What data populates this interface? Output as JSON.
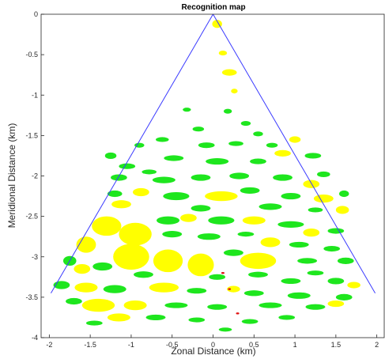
{
  "chart_data": {
    "type": "scatter",
    "title": "Recognition map",
    "xlabel": "Zonal Distance (km)",
    "ylabel": "Meridional Distance (km)",
    "xlim": [
      -2.1,
      2.1
    ],
    "ylim": [
      -4,
      0
    ],
    "xticks": [
      -2,
      -1.5,
      -1,
      -0.5,
      0,
      0.5,
      1,
      1.5,
      2
    ],
    "xtick_labels": [
      "-2",
      "-1.5",
      "-1",
      "-0.5",
      "0",
      "0.5",
      "1",
      "1.5",
      "2"
    ],
    "yticks": [
      0,
      -0.5,
      -1,
      -1.5,
      -2,
      -2.5,
      -3,
      -3.5,
      -4
    ],
    "ytick_labels": [
      "0",
      "-0.5",
      "-1",
      "-1.5",
      "-2",
      "-2.5",
      "-3",
      "-3.5",
      "-4"
    ],
    "grid": false,
    "boundary": {
      "color": "#3b3bff",
      "apex": [
        0,
        0
      ],
      "left_end": [
        -1.98,
        -3.45
      ],
      "right_end": [
        1.98,
        -3.45
      ]
    },
    "colors": {
      "green": "#1ee61e",
      "yellow": "#ffff00",
      "red": "#e01010"
    },
    "regions": [
      {
        "color": "yellow",
        "x": 0.05,
        "y": -0.12,
        "rx": 0.06,
        "ry": 0.05
      },
      {
        "color": "yellow",
        "x": 0.12,
        "y": -0.48,
        "rx": 0.05,
        "ry": 0.03
      },
      {
        "color": "yellow",
        "x": 0.2,
        "y": -0.72,
        "rx": 0.09,
        "ry": 0.04
      },
      {
        "color": "yellow",
        "x": 0.26,
        "y": -0.95,
        "rx": 0.04,
        "ry": 0.03
      },
      {
        "color": "green",
        "x": -0.32,
        "y": -1.18,
        "rx": 0.05,
        "ry": 0.025
      },
      {
        "color": "green",
        "x": 0.18,
        "y": -1.2,
        "rx": 0.05,
        "ry": 0.03
      },
      {
        "color": "green",
        "x": 0.4,
        "y": -1.35,
        "rx": 0.06,
        "ry": 0.03
      },
      {
        "color": "green",
        "x": -0.18,
        "y": -1.42,
        "rx": 0.07,
        "ry": 0.03
      },
      {
        "color": "green",
        "x": 0.55,
        "y": -1.48,
        "rx": 0.06,
        "ry": 0.03
      },
      {
        "color": "green",
        "x": -0.62,
        "y": -1.55,
        "rx": 0.08,
        "ry": 0.03
      },
      {
        "color": "green",
        "x": -0.08,
        "y": -1.62,
        "rx": 0.1,
        "ry": 0.035
      },
      {
        "color": "green",
        "x": 0.28,
        "y": -1.6,
        "rx": 0.09,
        "ry": 0.03
      },
      {
        "color": "green",
        "x": -0.9,
        "y": -1.62,
        "rx": 0.06,
        "ry": 0.03
      },
      {
        "color": "green",
        "x": 0.72,
        "y": -1.62,
        "rx": 0.07,
        "ry": 0.03
      },
      {
        "color": "yellow",
        "x": 1.0,
        "y": -1.55,
        "rx": 0.07,
        "ry": 0.04
      },
      {
        "color": "yellow",
        "x": 0.85,
        "y": -1.72,
        "rx": 0.1,
        "ry": 0.04
      },
      {
        "color": "green",
        "x": -1.25,
        "y": -1.75,
        "rx": 0.07,
        "ry": 0.04
      },
      {
        "color": "green",
        "x": -0.48,
        "y": -1.78,
        "rx": 0.12,
        "ry": 0.035
      },
      {
        "color": "green",
        "x": 0.05,
        "y": -1.82,
        "rx": 0.14,
        "ry": 0.04
      },
      {
        "color": "green",
        "x": 0.55,
        "y": -1.82,
        "rx": 0.1,
        "ry": 0.035
      },
      {
        "color": "green",
        "x": 1.22,
        "y": -1.75,
        "rx": 0.1,
        "ry": 0.035
      },
      {
        "color": "green",
        "x": -1.05,
        "y": -1.88,
        "rx": 0.1,
        "ry": 0.035
      },
      {
        "color": "green",
        "x": -0.78,
        "y": -1.95,
        "rx": 0.09,
        "ry": 0.03
      },
      {
        "color": "green",
        "x": -1.15,
        "y": -2.02,
        "rx": 0.1,
        "ry": 0.04
      },
      {
        "color": "green",
        "x": -0.6,
        "y": -2.05,
        "rx": 0.14,
        "ry": 0.04
      },
      {
        "color": "green",
        "x": -0.15,
        "y": -2.02,
        "rx": 0.12,
        "ry": 0.04
      },
      {
        "color": "green",
        "x": 0.32,
        "y": -2.0,
        "rx": 0.12,
        "ry": 0.04
      },
      {
        "color": "green",
        "x": 0.85,
        "y": -2.02,
        "rx": 0.12,
        "ry": 0.04
      },
      {
        "color": "green",
        "x": 1.35,
        "y": -1.98,
        "rx": 0.08,
        "ry": 0.035
      },
      {
        "color": "yellow",
        "x": 1.2,
        "y": -2.1,
        "rx": 0.1,
        "ry": 0.05
      },
      {
        "color": "green",
        "x": -1.2,
        "y": -2.22,
        "rx": 0.09,
        "ry": 0.04
      },
      {
        "color": "yellow",
        "x": -0.88,
        "y": -2.2,
        "rx": 0.1,
        "ry": 0.05
      },
      {
        "color": "green",
        "x": -0.45,
        "y": -2.25,
        "rx": 0.16,
        "ry": 0.05
      },
      {
        "color": "yellow",
        "x": 0.1,
        "y": -2.25,
        "rx": 0.2,
        "ry": 0.06
      },
      {
        "color": "green",
        "x": 0.45,
        "y": -2.18,
        "rx": 0.12,
        "ry": 0.04
      },
      {
        "color": "green",
        "x": 0.95,
        "y": -2.25,
        "rx": 0.12,
        "ry": 0.04
      },
      {
        "color": "yellow",
        "x": 1.35,
        "y": -2.28,
        "rx": 0.12,
        "ry": 0.05
      },
      {
        "color": "green",
        "x": 1.6,
        "y": -2.22,
        "rx": 0.06,
        "ry": 0.04
      },
      {
        "color": "yellow",
        "x": -1.12,
        "y": -2.35,
        "rx": 0.12,
        "ry": 0.05
      },
      {
        "color": "green",
        "x": -0.15,
        "y": -2.4,
        "rx": 0.12,
        "ry": 0.04
      },
      {
        "color": "green",
        "x": 0.7,
        "y": -2.38,
        "rx": 0.14,
        "ry": 0.04
      },
      {
        "color": "yellow",
        "x": 1.58,
        "y": -2.42,
        "rx": 0.08,
        "ry": 0.05
      },
      {
        "color": "green",
        "x": 1.25,
        "y": -2.42,
        "rx": 0.09,
        "ry": 0.03
      },
      {
        "color": "yellow",
        "x": -1.3,
        "y": -2.62,
        "rx": 0.18,
        "ry": 0.12
      },
      {
        "color": "yellow",
        "x": -0.95,
        "y": -2.72,
        "rx": 0.2,
        "ry": 0.14
      },
      {
        "color": "green",
        "x": -0.55,
        "y": -2.55,
        "rx": 0.14,
        "ry": 0.05
      },
      {
        "color": "yellow",
        "x": -0.3,
        "y": -2.52,
        "rx": 0.1,
        "ry": 0.05
      },
      {
        "color": "green",
        "x": 0.1,
        "y": -2.55,
        "rx": 0.16,
        "ry": 0.05
      },
      {
        "color": "yellow",
        "x": 0.5,
        "y": -2.55,
        "rx": 0.14,
        "ry": 0.05
      },
      {
        "color": "green",
        "x": 0.95,
        "y": -2.6,
        "rx": 0.16,
        "ry": 0.04
      },
      {
        "color": "yellow",
        "x": 1.2,
        "y": -2.7,
        "rx": 0.1,
        "ry": 0.05
      },
      {
        "color": "green",
        "x": 1.5,
        "y": -2.68,
        "rx": 0.1,
        "ry": 0.035
      },
      {
        "color": "yellow",
        "x": -1.55,
        "y": -2.85,
        "rx": 0.12,
        "ry": 0.1
      },
      {
        "color": "green",
        "x": -0.5,
        "y": -2.72,
        "rx": 0.12,
        "ry": 0.04
      },
      {
        "color": "green",
        "x": -0.05,
        "y": -2.75,
        "rx": 0.14,
        "ry": 0.04
      },
      {
        "color": "green",
        "x": 0.4,
        "y": -2.72,
        "rx": 0.1,
        "ry": 0.03
      },
      {
        "color": "yellow",
        "x": 0.7,
        "y": -2.82,
        "rx": 0.12,
        "ry": 0.06
      },
      {
        "color": "green",
        "x": 1.05,
        "y": -2.85,
        "rx": 0.12,
        "ry": 0.035
      },
      {
        "color": "green",
        "x": 1.45,
        "y": -2.9,
        "rx": 0.1,
        "ry": 0.035
      },
      {
        "color": "green",
        "x": 1.62,
        "y": -3.05,
        "rx": 0.1,
        "ry": 0.04
      },
      {
        "color": "yellow",
        "x": -1.0,
        "y": -3.0,
        "rx": 0.22,
        "ry": 0.16
      },
      {
        "color": "yellow",
        "x": -0.55,
        "y": -3.05,
        "rx": 0.18,
        "ry": 0.14
      },
      {
        "color": "yellow",
        "x": -0.15,
        "y": -3.1,
        "rx": 0.16,
        "ry": 0.14
      },
      {
        "color": "green",
        "x": 0.25,
        "y": -2.95,
        "rx": 0.12,
        "ry": 0.04
      },
      {
        "color": "yellow",
        "x": 0.55,
        "y": -3.05,
        "rx": 0.22,
        "ry": 0.1
      },
      {
        "color": "green",
        "x": 1.15,
        "y": -3.05,
        "rx": 0.12,
        "ry": 0.035
      },
      {
        "color": "green",
        "x": 1.25,
        "y": -3.2,
        "rx": 0.1,
        "ry": 0.03
      },
      {
        "color": "green",
        "x": -1.75,
        "y": -3.05,
        "rx": 0.08,
        "ry": 0.06
      },
      {
        "color": "yellow",
        "x": -1.6,
        "y": -3.15,
        "rx": 0.1,
        "ry": 0.06
      },
      {
        "color": "green",
        "x": -1.35,
        "y": -3.12,
        "rx": 0.12,
        "ry": 0.05
      },
      {
        "color": "green",
        "x": -0.85,
        "y": -3.22,
        "rx": 0.12,
        "ry": 0.04
      },
      {
        "color": "green",
        "x": 0.05,
        "y": -3.25,
        "rx": 0.1,
        "ry": 0.035
      },
      {
        "color": "green",
        "x": 0.55,
        "y": -3.22,
        "rx": 0.12,
        "ry": 0.035
      },
      {
        "color": "green",
        "x": 0.95,
        "y": -3.3,
        "rx": 0.12,
        "ry": 0.035
      },
      {
        "color": "green",
        "x": 1.5,
        "y": -3.3,
        "rx": 0.1,
        "ry": 0.04
      },
      {
        "color": "yellow",
        "x": 1.72,
        "y": -3.35,
        "rx": 0.08,
        "ry": 0.04
      },
      {
        "color": "red",
        "x": 0.12,
        "y": -3.2,
        "rx": 0.02,
        "ry": 0.012
      },
      {
        "color": "green",
        "x": -1.85,
        "y": -3.35,
        "rx": 0.1,
        "ry": 0.05
      },
      {
        "color": "yellow",
        "x": -1.55,
        "y": -3.38,
        "rx": 0.14,
        "ry": 0.06
      },
      {
        "color": "green",
        "x": -1.2,
        "y": -3.4,
        "rx": 0.14,
        "ry": 0.05
      },
      {
        "color": "yellow",
        "x": -0.6,
        "y": -3.38,
        "rx": 0.18,
        "ry": 0.06
      },
      {
        "color": "green",
        "x": -0.2,
        "y": -3.42,
        "rx": 0.12,
        "ry": 0.035
      },
      {
        "color": "yellow",
        "x": 0.25,
        "y": -3.4,
        "rx": 0.08,
        "ry": 0.04
      },
      {
        "color": "green",
        "x": 0.5,
        "y": -3.45,
        "rx": 0.12,
        "ry": 0.035
      },
      {
        "color": "green",
        "x": 1.05,
        "y": -3.48,
        "rx": 0.14,
        "ry": 0.04
      },
      {
        "color": "green",
        "x": 1.6,
        "y": -3.5,
        "rx": 0.1,
        "ry": 0.04
      },
      {
        "color": "yellow",
        "x": 1.5,
        "y": -3.58,
        "rx": 0.1,
        "ry": 0.04
      },
      {
        "color": "red",
        "x": 0.2,
        "y": -3.4,
        "rx": 0.018,
        "ry": 0.012
      },
      {
        "color": "yellow",
        "x": -1.4,
        "y": -3.6,
        "rx": 0.2,
        "ry": 0.08
      },
      {
        "color": "green",
        "x": -1.7,
        "y": -3.55,
        "rx": 0.1,
        "ry": 0.04
      },
      {
        "color": "yellow",
        "x": -0.95,
        "y": -3.6,
        "rx": 0.14,
        "ry": 0.06
      },
      {
        "color": "green",
        "x": -0.45,
        "y": -3.6,
        "rx": 0.14,
        "ry": 0.035
      },
      {
        "color": "green",
        "x": 0.05,
        "y": -3.62,
        "rx": 0.12,
        "ry": 0.035
      },
      {
        "color": "green",
        "x": 0.7,
        "y": -3.6,
        "rx": 0.14,
        "ry": 0.035
      },
      {
        "color": "green",
        "x": 1.25,
        "y": -3.62,
        "rx": 0.12,
        "ry": 0.035
      },
      {
        "color": "yellow",
        "x": -1.15,
        "y": -3.75,
        "rx": 0.14,
        "ry": 0.05
      },
      {
        "color": "green",
        "x": -0.7,
        "y": -3.75,
        "rx": 0.12,
        "ry": 0.035
      },
      {
        "color": "green",
        "x": -0.2,
        "y": -3.78,
        "rx": 0.1,
        "ry": 0.03
      },
      {
        "color": "green",
        "x": 0.45,
        "y": -3.8,
        "rx": 0.1,
        "ry": 0.03
      },
      {
        "color": "green",
        "x": 0.9,
        "y": -3.75,
        "rx": 0.1,
        "ry": 0.03
      },
      {
        "color": "green",
        "x": -1.45,
        "y": -3.82,
        "rx": 0.1,
        "ry": 0.03
      },
      {
        "color": "green",
        "x": 0.15,
        "y": -3.9,
        "rx": 0.08,
        "ry": 0.025
      },
      {
        "color": "red",
        "x": 0.3,
        "y": -3.7,
        "rx": 0.02,
        "ry": 0.012
      }
    ]
  }
}
